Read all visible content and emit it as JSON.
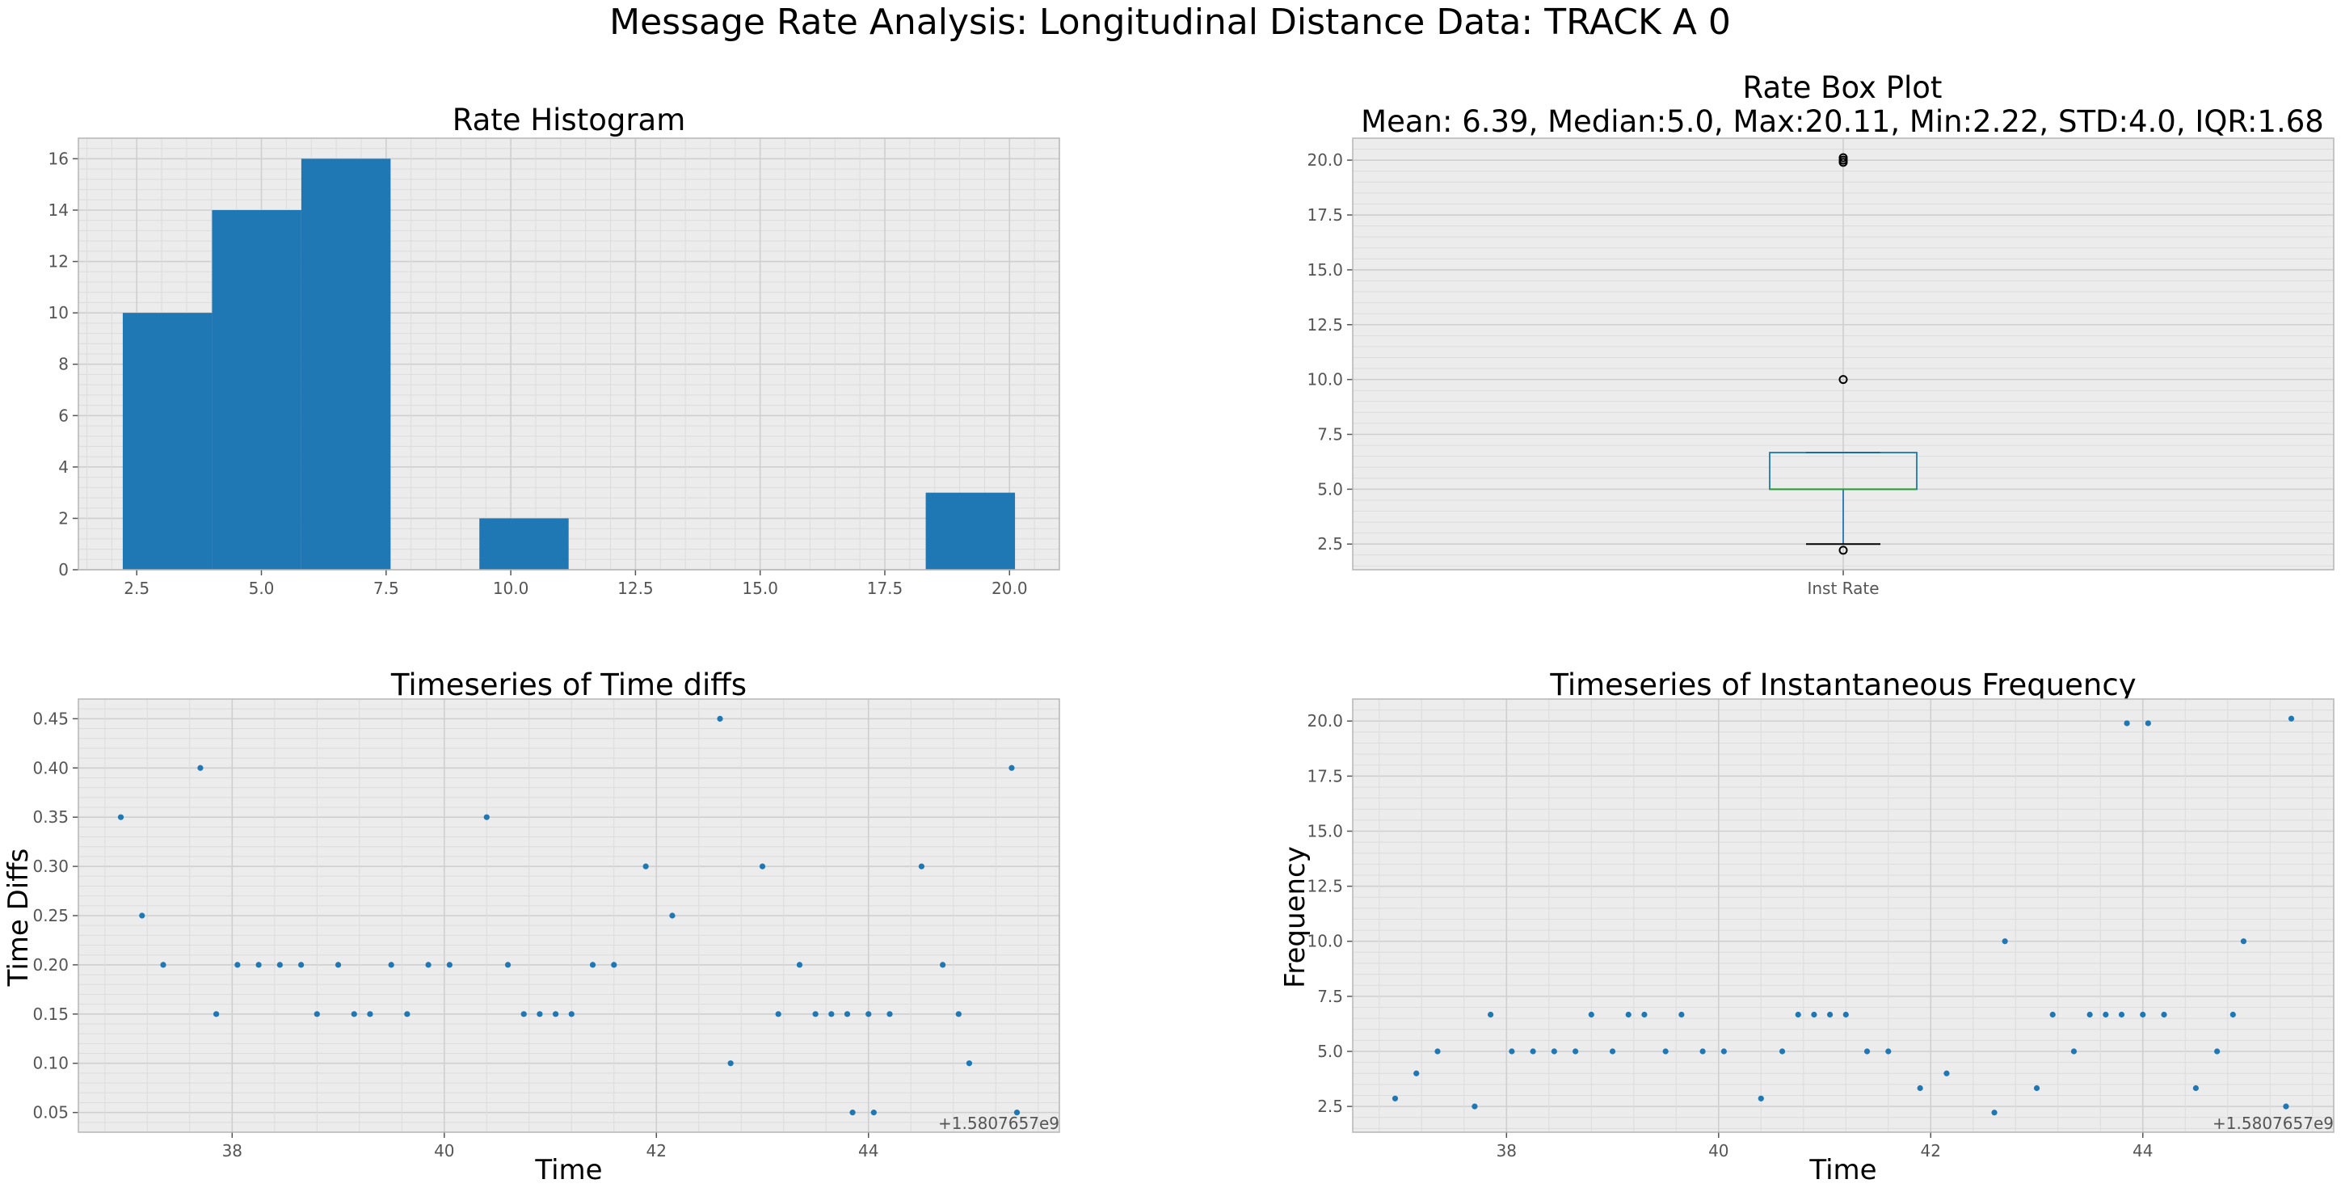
{
  "figure": {
    "suptitle": "Message Rate Analysis: Longitudinal Distance Data: TRACK A 0",
    "colors": {
      "background": "#ececec",
      "bar": "#1f77b4",
      "point": "#1f77b4",
      "grid": "#cfcfcf",
      "box": "#1f77b4",
      "median": "#2ca02c"
    }
  },
  "chart_data": [
    {
      "id": "histogram",
      "type": "bar",
      "title": "Rate Histogram",
      "xlabel": "",
      "ylabel": "",
      "xlim": [
        1.33,
        21.0
      ],
      "ylim": [
        0,
        16.8
      ],
      "xticks": [
        2.5,
        5.0,
        7.5,
        10.0,
        12.5,
        15.0,
        17.5,
        20.0
      ],
      "xtick_labels": [
        "2.5",
        "5.0",
        "7.5",
        "10.0",
        "12.5",
        "15.0",
        "17.5",
        "20.0"
      ],
      "yticks": [
        0,
        2,
        4,
        6,
        8,
        10,
        12,
        14,
        16
      ],
      "ytick_labels": [
        "0",
        "2",
        "4",
        "6",
        "8",
        "10",
        "12",
        "14",
        "16"
      ],
      "bins": [
        2.22,
        4.01,
        5.8,
        7.59,
        9.37,
        11.16,
        12.95,
        14.74,
        16.53,
        18.32,
        20.11
      ],
      "counts": [
        10,
        14,
        16,
        0,
        2,
        0,
        0,
        0,
        0,
        3
      ],
      "grid": true
    },
    {
      "id": "boxplot",
      "type": "box",
      "title_lines": [
        "Rate Box Plot",
        "Mean: 6.39, Median:5.0, Max:20.11, Min:2.22, STD:4.0, IQR:1.68"
      ],
      "category": "Inst Rate",
      "ylim": [
        1.33,
        21.0
      ],
      "yticks": [
        2.5,
        5.0,
        7.5,
        10.0,
        12.5,
        15.0,
        17.5,
        20.0
      ],
      "ytick_labels": [
        "2.5",
        "5.0",
        "7.5",
        "10.0",
        "12.5",
        "15.0",
        "17.5",
        "20.0"
      ],
      "q1": 5.0,
      "median": 5.0,
      "q3": 6.67,
      "whisker_low": 2.5,
      "whisker_high": 6.67,
      "outliers": [
        2.22,
        10.0,
        19.9,
        20.0,
        20.11
      ],
      "grid": true
    },
    {
      "id": "timediffs",
      "type": "scatter",
      "title": "Timeseries of Time diffs",
      "xlabel": "Time",
      "ylabel": "Time Diffs",
      "offset_text": "+1.5807657e9",
      "xlim": [
        36.55,
        45.8
      ],
      "ylim": [
        0.03,
        0.47
      ],
      "xticks": [
        38,
        40,
        42,
        44
      ],
      "xtick_labels": [
        "38",
        "40",
        "42",
        "44"
      ],
      "yticks": [
        0.05,
        0.1,
        0.15,
        0.2,
        0.25,
        0.3,
        0.35,
        0.4,
        0.45
      ],
      "ytick_labels": [
        "0.05",
        "0.10",
        "0.15",
        "0.20",
        "0.25",
        "0.30",
        "0.35",
        "0.40",
        "0.45"
      ],
      "x": [
        36.95,
        37.15,
        37.35,
        37.7,
        37.85,
        38.05,
        38.25,
        38.45,
        38.65,
        38.8,
        39.0,
        39.15,
        39.3,
        39.5,
        39.65,
        39.85,
        40.05,
        40.4,
        40.6,
        40.75,
        40.9,
        41.05,
        41.2,
        41.4,
        41.6,
        41.9,
        42.15,
        42.6,
        42.7,
        43.0,
        43.15,
        43.35,
        43.5,
        43.65,
        43.8,
        43.85,
        44.0,
        44.05,
        44.2,
        44.5,
        44.7,
        44.85,
        44.95,
        45.35,
        45.4
      ],
      "y": [
        0.35,
        0.25,
        0.2,
        0.4,
        0.15,
        0.2,
        0.2,
        0.2,
        0.2,
        0.15,
        0.2,
        0.15,
        0.15,
        0.2,
        0.15,
        0.2,
        0.2,
        0.35,
        0.2,
        0.15,
        0.15,
        0.15,
        0.15,
        0.2,
        0.2,
        0.3,
        0.25,
        0.45,
        0.1,
        0.3,
        0.15,
        0.2,
        0.15,
        0.15,
        0.15,
        0.05,
        0.15,
        0.05,
        0.15,
        0.3,
        0.2,
        0.15,
        0.1,
        0.4,
        0.05
      ],
      "grid": true
    },
    {
      "id": "instfreq",
      "type": "scatter",
      "title": "Timeseries of Instantaneous Frequency",
      "xlabel": "Time",
      "ylabel": "Frequency",
      "offset_text": "+1.5807657e9",
      "xlim": [
        36.55,
        45.8
      ],
      "ylim": [
        1.33,
        21.0
      ],
      "xticks": [
        38,
        40,
        42,
        44
      ],
      "xtick_labels": [
        "38",
        "40",
        "42",
        "44"
      ],
      "yticks": [
        2.5,
        5.0,
        7.5,
        10.0,
        12.5,
        15.0,
        17.5,
        20.0
      ],
      "ytick_labels": [
        "2.5",
        "5.0",
        "7.5",
        "10.0",
        "12.5",
        "15.0",
        "17.5",
        "20.0"
      ],
      "x": [
        36.95,
        37.15,
        37.35,
        37.7,
        37.85,
        38.05,
        38.25,
        38.45,
        38.65,
        38.8,
        39.0,
        39.15,
        39.3,
        39.5,
        39.65,
        39.85,
        40.05,
        40.4,
        40.6,
        40.75,
        40.9,
        41.05,
        41.2,
        41.4,
        41.6,
        41.9,
        42.15,
        42.6,
        42.7,
        43.0,
        43.15,
        43.35,
        43.5,
        43.65,
        43.8,
        43.85,
        44.0,
        44.05,
        44.2,
        44.5,
        44.7,
        44.85,
        44.95,
        45.35,
        45.4
      ],
      "y": [
        2.86,
        4.0,
        5.0,
        2.5,
        6.67,
        5.0,
        5.0,
        5.0,
        5.0,
        6.67,
        5.0,
        6.67,
        6.67,
        5.0,
        6.67,
        5.0,
        5.0,
        2.86,
        5.0,
        6.67,
        6.67,
        6.67,
        6.67,
        5.0,
        5.0,
        3.33,
        4.0,
        2.22,
        10.0,
        3.33,
        6.67,
        5.0,
        6.67,
        6.67,
        6.67,
        19.9,
        6.67,
        19.9,
        6.67,
        3.33,
        5.0,
        6.67,
        10.0,
        2.5,
        20.11
      ],
      "grid": true
    }
  ]
}
